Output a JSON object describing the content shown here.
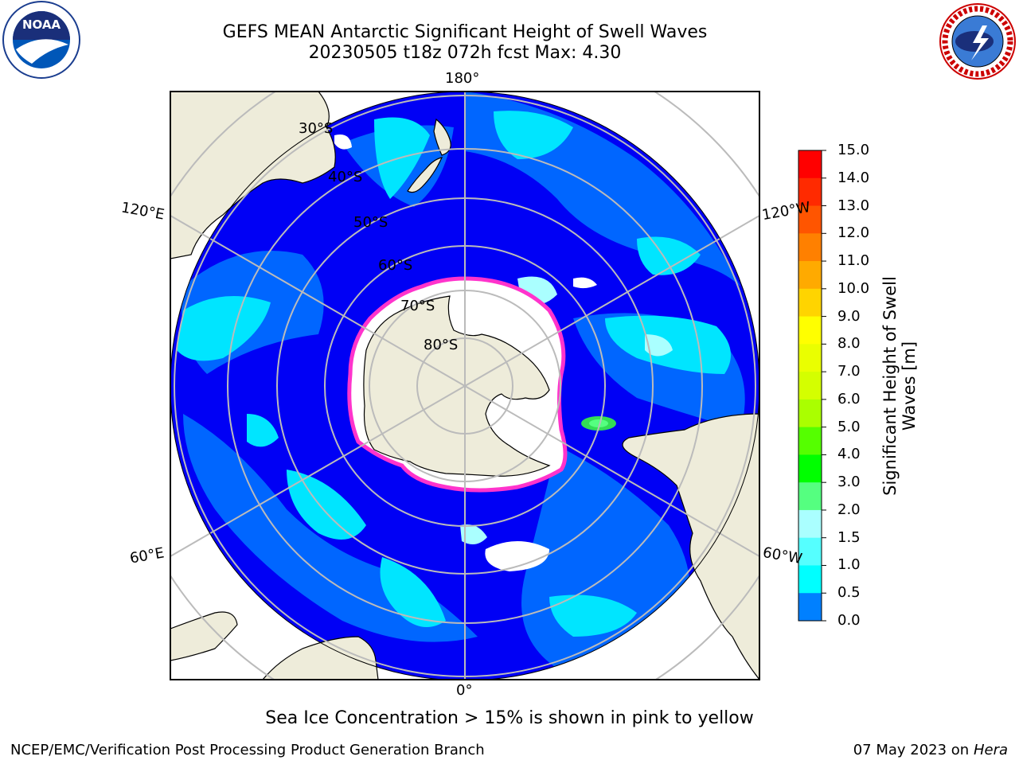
{
  "title": {
    "line1": "GEFS MEAN Antarctic Significant Height of Swell Waves",
    "line2": "20230505 t18z 072h fcst   Max: 4.30"
  },
  "map": {
    "projection": "south-polar-stereographic",
    "colors": {
      "ocean_low": "#0000f5",
      "ocean_mid": "#0066ff",
      "ocean_high": "#00e5ff",
      "land": "#eeecda",
      "sea_ice_edge": "#ff33cc",
      "grid": "#bbbbbb"
    },
    "longitude_labels": {
      "top": "180°",
      "bottom": "0°",
      "upper_left": "120°E",
      "upper_right": "120°W",
      "lower_left": "60°E",
      "lower_right": "60°W"
    },
    "latitude_labels": [
      "30°S",
      "40°S",
      "50°S",
      "60°S",
      "70°S",
      "80°S"
    ]
  },
  "colorbar": {
    "label_line1": "Significant Height of Swell",
    "label_line2": "Waves [m]",
    "ticks": [
      "15.0",
      "14.0",
      "13.0",
      "12.0",
      "11.0",
      "10.0",
      "9.0",
      "8.0",
      "7.0",
      "6.0",
      "5.0",
      "4.0",
      "3.0",
      "2.0",
      "1.5",
      "1.0",
      "0.5",
      "0.0"
    ],
    "colors": [
      "#ff0000",
      "#ff2a00",
      "#ff5500",
      "#ff8000",
      "#ffaa00",
      "#ffd400",
      "#ffff00",
      "#eaff00",
      "#d4ff00",
      "#aaff00",
      "#55ff00",
      "#00ff00",
      "#55ff80",
      "#aaffff",
      "#55ffff",
      "#00ffff",
      "#0080ff",
      "#0000ff"
    ]
  },
  "footer": {
    "note": "Sea Ice Concentration > 15% is shown in pink to yellow",
    "credit": "NCEP/EMC/Verification Post Processing Product Generation Branch",
    "date": "07 May 2023 on",
    "machine": "Hera"
  },
  "logos": {
    "left": {
      "icon": "noaa-logo-icon",
      "text": "NOAA"
    },
    "right": {
      "icon": "nws-logo-icon",
      "text": "NATIONAL WEATHER SERVICE"
    }
  }
}
